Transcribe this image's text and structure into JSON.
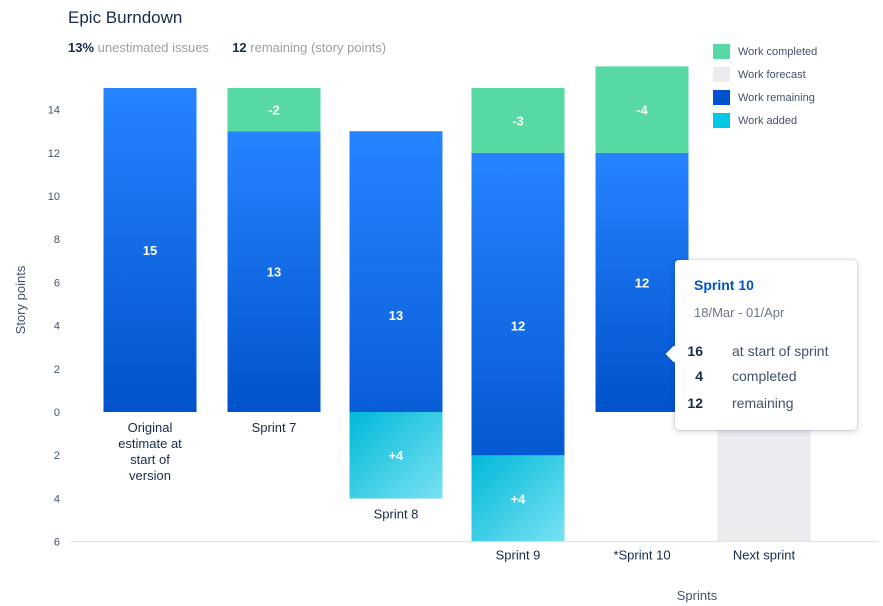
{
  "header": {
    "title": "Epic Burndown",
    "unestimated_value": "13%",
    "unestimated_label": "unestimated issues",
    "remaining_value": "12",
    "remaining_label": "remaining (story points)"
  },
  "legend": [
    {
      "label": "Work completed",
      "color": "#57d9a3"
    },
    {
      "label": "Work forecast",
      "color": "#ebecf0"
    },
    {
      "label": "Work remaining",
      "color": "#0052cc"
    },
    {
      "label": "Work added",
      "color": "#00c7e6"
    }
  ],
  "tooltip": {
    "title": "Sprint 10",
    "dates": "18/Mar - 01/Apr",
    "rows": [
      {
        "value": "16",
        "label": "at start of sprint"
      },
      {
        "value": "4",
        "label": "completed"
      },
      {
        "value": "12",
        "label": "remaining"
      }
    ]
  },
  "chart_data": {
    "type": "bar",
    "title": "Epic Burndown",
    "xlabel": "Sprints",
    "ylabel": "Story points",
    "y_ticks_above": [
      14,
      12,
      10,
      8,
      6,
      4,
      2,
      0
    ],
    "y_ticks_below": [
      2,
      4,
      6
    ],
    "ylim": [
      -6,
      15
    ],
    "categories": [
      [
        "Original",
        "estimate at",
        "start of",
        "version"
      ],
      [
        "Sprint 7"
      ],
      [
        "Sprint 8"
      ],
      [
        "Sprint 9"
      ],
      [
        "*Sprint 10"
      ],
      [
        "Next sprint"
      ]
    ],
    "colors": {
      "completed": "#57d9a3",
      "forecast": "#ebecf0",
      "remaining_top": "#2684ff",
      "remaining_bottom": "#0052cc",
      "added_top": "#79e2f2",
      "added_bottom": "#00b8d9"
    },
    "series": [
      {
        "name": "Work remaining",
        "values": [
          15,
          13,
          13,
          12,
          12,
          null
        ],
        "labels": [
          "15",
          "13",
          "13",
          "12",
          "12",
          ""
        ]
      },
      {
        "name": "Work completed",
        "values": [
          0,
          2,
          0,
          3,
          4,
          0
        ],
        "labels": [
          "",
          "-2",
          "",
          "-3",
          "-4",
          ""
        ]
      },
      {
        "name": "Work added",
        "values": [
          0,
          0,
          4,
          4,
          0,
          0
        ],
        "labels": [
          "",
          "",
          "+4",
          "+4",
          "",
          ""
        ]
      },
      {
        "name": "Work forecast",
        "values": [
          0,
          0,
          0,
          0,
          0,
          12
        ],
        "labels": [
          "",
          "",
          "",
          "",
          "",
          ""
        ]
      }
    ],
    "grid": false,
    "legend_position": "top-right"
  }
}
